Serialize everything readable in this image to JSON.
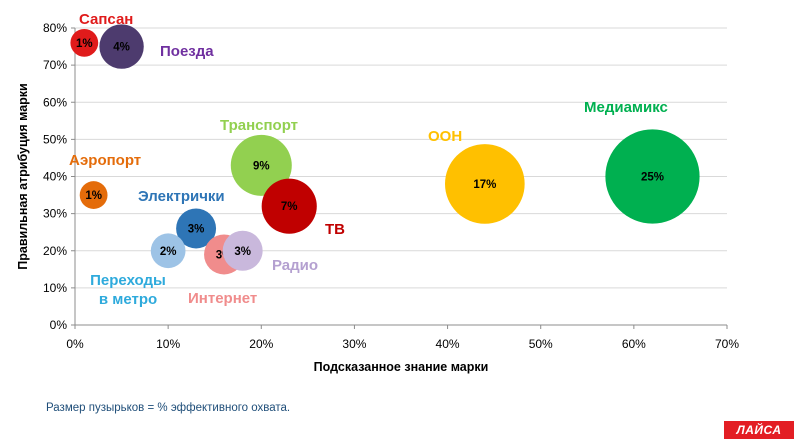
{
  "chart_data": {
    "type": "scatter",
    "xlabel": "Подсказанное знание марки",
    "ylabel": "Правильная атрибуция марки",
    "xlim": [
      0,
      70
    ],
    "ylim": [
      0,
      80
    ],
    "xticks": [
      "0%",
      "10%",
      "20%",
      "30%",
      "40%",
      "50%",
      "60%",
      "70%"
    ],
    "yticks": [
      "0%",
      "10%",
      "20%",
      "30%",
      "40%",
      "50%",
      "60%",
      "70%",
      "80%"
    ],
    "grid": "horizontal",
    "legend": "none",
    "series": [
      {
        "name": "Сапсан",
        "x": 1,
        "y": 76,
        "size": 1,
        "bubble_label": "1%",
        "color": "#e01b1b",
        "label_color": "#e01b1b"
      },
      {
        "name": "Поезда",
        "x": 5,
        "y": 75,
        "size": 4,
        "bubble_label": "4%",
        "color": "#4d3b6e",
        "label_color": "#7030a0"
      },
      {
        "name": "Аэропорт",
        "x": 2,
        "y": 35,
        "size": 1,
        "bubble_label": "1%",
        "color": "#e46c0a",
        "label_color": "#e46c0a"
      },
      {
        "name": "Электрички",
        "x": 13,
        "y": 26,
        "size": 3,
        "bubble_label": "3%",
        "color": "#2e75b6",
        "label_color": "#2e75b6"
      },
      {
        "name": "Переходы в метро",
        "x": 10,
        "y": 20,
        "size": 2,
        "bubble_label": "2%",
        "color": "#9dc3e6",
        "label_color": "#2eaadc"
      },
      {
        "name": "Интернет",
        "x": 16,
        "y": 19,
        "size": 3,
        "bubble_label": "3%",
        "color": "#f08c8c",
        "label_color": "#f08c8c"
      },
      {
        "name": "Радио",
        "x": 18,
        "y": 20,
        "size": 3,
        "bubble_label": "3%",
        "color": "#c9b8dc",
        "label_color": "#b4a0d0"
      },
      {
        "name": "Транспорт",
        "x": 20,
        "y": 43,
        "size": 9,
        "bubble_label": "9%",
        "color": "#92d050",
        "label_color": "#92d050"
      },
      {
        "name": "ТВ",
        "x": 23,
        "y": 32,
        "size": 7,
        "bubble_label": "7%",
        "color": "#c00000",
        "label_color": "#c00000"
      },
      {
        "name": "ООН",
        "x": 44,
        "y": 38,
        "size": 17,
        "bubble_label": "17%",
        "color": "#ffc000",
        "label_color": "#ffc000"
      },
      {
        "name": "Медиамикс",
        "x": 62,
        "y": 40,
        "size": 25,
        "bubble_label": "25%",
        "color": "#00b050",
        "label_color": "#00b050"
      }
    ]
  },
  "footnote": "Размер пузырьков = % эффективного охвата.",
  "brand": "ЛАЙСА"
}
